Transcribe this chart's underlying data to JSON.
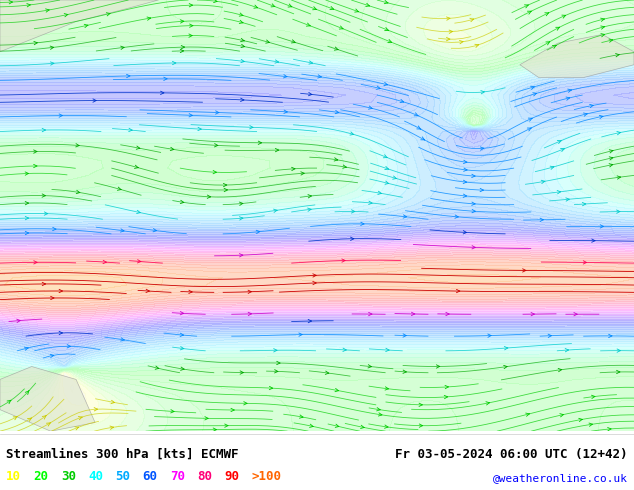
{
  "title_left": "Streamlines 300 hPa [kts] ECMWF",
  "title_right": "Fr 03-05-2024 06:00 UTC (12+42)",
  "credit": "@weatheronline.co.uk",
  "legend_values": [
    "10",
    "20",
    "30",
    "40",
    "50",
    "60",
    "70",
    "80",
    "90",
    ">100"
  ],
  "legend_colors": [
    "#ffff00",
    "#00ff00",
    "#00cc00",
    "#00ffff",
    "#00aaff",
    "#0055ff",
    "#ff00ff",
    "#ff0077",
    "#ff0000",
    "#ff6600"
  ],
  "bg_color": "#ffffff",
  "map_bg": "#f0f0f0",
  "bottom_bar_color": "#ffffff",
  "text_color": "#000000",
  "title_fontsize": 9,
  "legend_fontsize": 9,
  "credit_color": "#0000ff",
  "streamline_seed_points": 800,
  "fig_width": 6.34,
  "fig_height": 4.9
}
